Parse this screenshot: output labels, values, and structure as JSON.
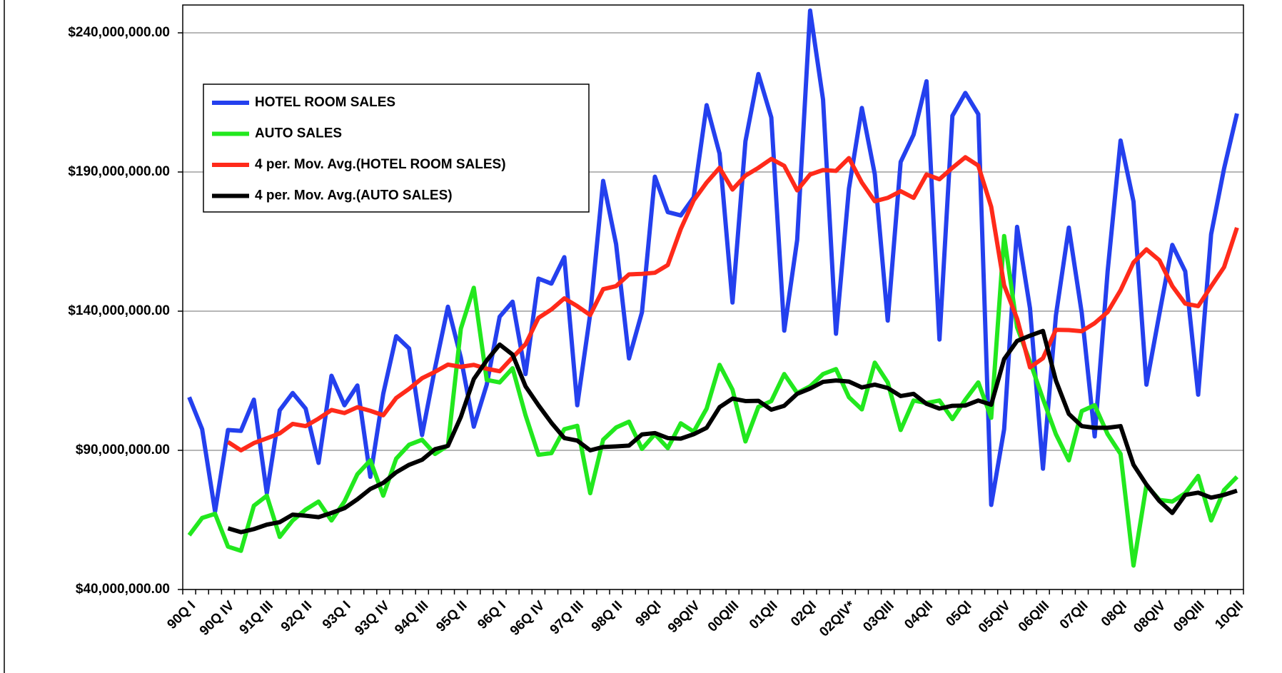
{
  "chart_data": {
    "type": "line",
    "categories": [
      "90Q I",
      null,
      null,
      "90Q IV",
      null,
      null,
      "91Q III",
      null,
      null,
      "92Q II",
      null,
      null,
      "93Q I",
      null,
      null,
      "93Q IV",
      null,
      null,
      "94Q III",
      null,
      null,
      "95Q II",
      null,
      null,
      "96Q I",
      null,
      null,
      "96Q IV",
      null,
      null,
      "97Q III",
      null,
      null,
      "98Q II",
      null,
      null,
      "99QI",
      null,
      null,
      "99QIV",
      null,
      null,
      "00QIII",
      null,
      null,
      "01QII",
      null,
      null,
      "02QI",
      null,
      null,
      "02QIV*",
      null,
      null,
      "03QIII",
      null,
      null,
      "04QII",
      null,
      null,
      "05QI",
      null,
      null,
      "05QIV",
      null,
      null,
      "06QIII",
      null,
      null,
      "07QII",
      null,
      null,
      "08QI",
      null,
      null,
      "08QIV",
      null,
      null,
      "09QIII",
      null,
      null,
      "10QII"
    ],
    "series": [
      {
        "name": "HOTEL ROOM SALES",
        "color": "#2440ee",
        "values": [
          109100000.0,
          97600000.0,
          68000000.0,
          97300000.0,
          97000000.0,
          108200000.0,
          74600000.0,
          104400000.0,
          110600000.0,
          105000000.0,
          85500000.0,
          116800000.0,
          106200000.0,
          113300000.0,
          80500000.0,
          110300000.0,
          131000000.0,
          126600000.0,
          95500000.0,
          119500000.0,
          141600000.0,
          123300000.0,
          98500000.0,
          113600000.0,
          138000000.0,
          143400000.0,
          117400000.0,
          151700000.0,
          149900000.0,
          159400000.0,
          106200000.0,
          139000000.0,
          186800000.0,
          164100000.0,
          123000000.0,
          139600000.0,
          188300000.0,
          175600000.0,
          174400000.0,
          180900000.0,
          214000000.0,
          196600000.0,
          143100000.0,
          201000000.0,
          225200000.0,
          209600000.0,
          133000000.0,
          165600000.0,
          248000000.0,
          216000000.0,
          131900000.0,
          184000000.0,
          213000000.0,
          189200000.0,
          136600000.0,
          193600000.0,
          203400000.0,
          222600000.0,
          129800000.0,
          210200000.0,
          218400000.0,
          210800000.0,
          70400000.0,
          97600000.0,
          170300000.0,
          141000000.0,
          83400000.0,
          138400000.0,
          170000000.0,
          139300000.0,
          95000000.0,
          154300000.0,
          201300000.0,
          179400000.0,
          113600000.0,
          139000000.0,
          163800000.0,
          154300000.0,
          110000000.0,
          167600000.0,
          191200000.0,
          211000000.0
        ]
      },
      {
        "name": "AUTO SALES",
        "color": "#22e81e",
        "values": [
          59500000.0,
          65700000.0,
          67200000.0,
          55400000.0,
          53900000.0,
          70100000.0,
          73700000.0,
          58900000.0,
          64800000.0,
          68700000.0,
          71600000.0,
          64800000.0,
          71600000.0,
          81400000.0,
          86400000.0,
          73700000.0,
          87000000.0,
          92000000.0,
          93800000.0,
          88700000.0,
          91700000.0,
          133700000.0,
          148400000.0,
          115300000.0,
          114400000.0,
          119500000.0,
          102600000.0,
          88400000.0,
          89000000.0,
          97600000.0,
          98800000.0,
          74600000.0,
          93800000.0,
          98200000.0,
          100300000.0,
          90500000.0,
          95800000.0,
          90800000.0,
          99700000.0,
          96700000.0,
          105000000.0,
          120700000.0,
          111800000.0,
          93200000.0,
          105600000.0,
          107700000.0,
          117400000.0,
          110600000.0,
          113000000.0,
          117400000.0,
          119200000.0,
          109100000.0,
          104700000.0,
          121500000.0,
          114400000.0,
          97300000.0,
          107900000.0,
          107000000.0,
          107900000.0,
          101200000.0,
          108200000.0,
          114400000.0,
          101700000.0,
          167000000.0,
          134200000.0,
          121800000.0,
          108500000.0,
          95800000.0,
          86400000.0,
          104100000.0,
          106200000.0,
          95800000.0,
          88700000.0,
          48600000.0,
          77500000.0,
          72200000.0,
          71600000.0,
          74600000.0,
          80800000.0,
          64800000.0,
          75700000.0,
          80500000.0
        ]
      },
      {
        "name": "4 per. Mov. Avg.(HOTEL ROOM SALES)",
        "color": "#ff2a1a",
        "values": [
          null,
          null,
          null,
          93000000.0,
          90000000.0,
          92600000.0,
          94300000.0,
          96100000.0,
          99500000.0,
          98700000.0,
          101400000.0,
          104500000.0,
          103400000.0,
          105500000.0,
          104200000.0,
          102600000.0,
          108800000.0,
          112100000.0,
          115900000.0,
          118200000.0,
          120800000.0,
          120000000.0,
          120700000.0,
          119300000.0,
          118400000.0,
          123400000.0,
          128100000.0,
          137600000.0,
          140600000.0,
          144600000.0,
          141800000.0,
          138600000.0,
          147900000.0,
          149000000.0,
          153200000.0,
          153400000.0,
          153800000.0,
          156600000.0,
          169500000.0,
          179800000.0,
          186200000.0,
          191500000.0,
          183700000.0,
          188700000.0,
          191500000.0,
          194700000.0,
          192200000.0,
          183400000.0,
          189100000.0,
          190700000.0,
          190400000.0,
          195000000.0,
          186200000.0,
          179500000.0,
          180700000.0,
          183100000.0,
          180700000.0,
          189100000.0,
          187400000.0,
          191500000.0,
          195300000.0,
          192300000.0,
          177500000.0,
          149300000.0,
          137300000.0,
          119800000.0,
          123100000.0,
          133300000.0,
          133200000.0,
          132800000.0,
          135700000.0,
          139700000.0,
          147500000.0,
          157500000.0,
          162200000.0,
          158300000.0,
          149000000.0,
          142700000.0,
          141800000.0,
          148900000.0,
          155800000.0,
          170000000.0
        ]
      },
      {
        "name": "4 per. Mov. Avg.(AUTO SALES)",
        "color": "#000000",
        "values": [
          null,
          null,
          null,
          62000000.0,
          60600000.0,
          61700000.0,
          63300000.0,
          64200000.0,
          66900000.0,
          66500000.0,
          66000000.0,
          67500000.0,
          69200000.0,
          72400000.0,
          76100000.0,
          78300000.0,
          82100000.0,
          84800000.0,
          86600000.0,
          90400000.0,
          91600000.0,
          102000000.0,
          115600000.0,
          122300000.0,
          128000000.0,
          124400000.0,
          113000000.0,
          106200000.0,
          99900000.0,
          94400000.0,
          93500000.0,
          90000000.0,
          91200000.0,
          91400000.0,
          91700000.0,
          95700000.0,
          96200000.0,
          94400000.0,
          94200000.0,
          95800000.0,
          98100000.0,
          105500000.0,
          108600000.0,
          107700000.0,
          107800000.0,
          104600000.0,
          106000000.0,
          110300000.0,
          112200000.0,
          114600000.0,
          115100000.0,
          114700000.0,
          112600000.0,
          113600000.0,
          112400000.0,
          109500000.0,
          110300000.0,
          106700000.0,
          105000000.0,
          106000000.0,
          106100000.0,
          107900000.0,
          106400000.0,
          122800000.0,
          129300000.0,
          131200000.0,
          132900000.0,
          115100000.0,
          103100000.0,
          98700000.0,
          98100000.0,
          98100000.0,
          98700000.0,
          84800000.0,
          77700000.0,
          71800000.0,
          67500000.0,
          74000000.0,
          74800000.0,
          73000000.0,
          74000000.0,
          75500000.0
        ]
      }
    ],
    "ylim": [
      40000000.0,
      250000000.0
    ],
    "yticks": [
      {
        "value": 40000000.0,
        "label": "$40,000,000.00"
      },
      {
        "value": 90000000.0,
        "label": "$90,000,000.00"
      },
      {
        "value": 140000000.0,
        "label": "$140,000,000.00"
      },
      {
        "value": 190000000.0,
        "label": "$190,000,000.00"
      },
      {
        "value": 240000000.0,
        "label": "$240,000,000.00"
      }
    ],
    "grid": true,
    "legend": "upper left"
  }
}
